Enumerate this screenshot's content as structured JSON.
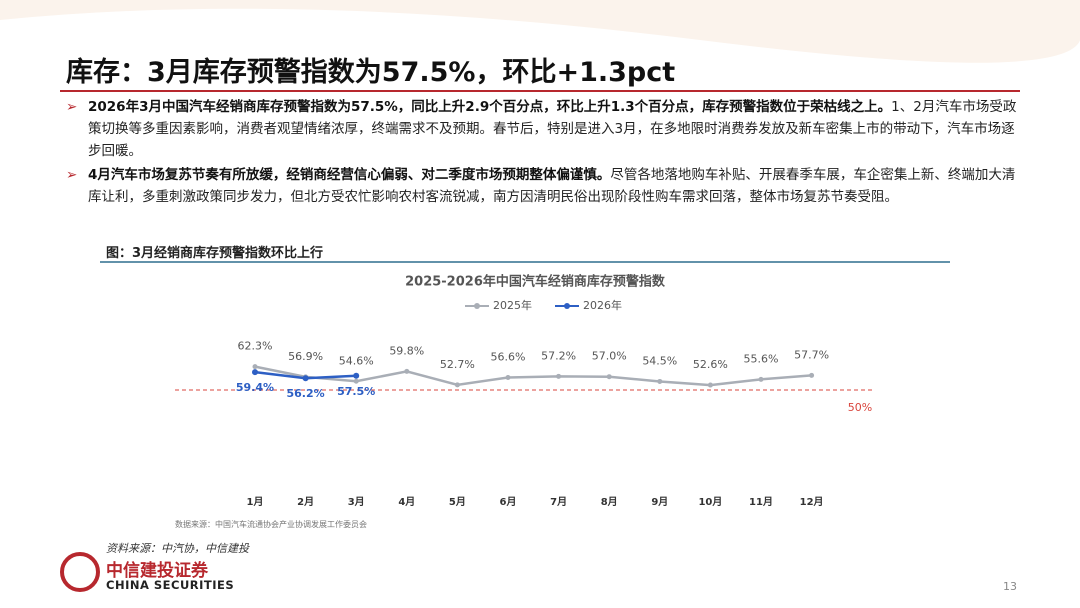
{
  "title": "库存：3月库存预警指数为57.5%，环比+1.3pct",
  "bullets": [
    {
      "bold": "2026年3月中国汽车经销商库存预警指数为57.5%，同比上升2.9个百分点，环比上升1.3个百分点，库存预警指数位于荣枯线之上。",
      "text": "1、2月汽车市场受政策切换等多重因素影响，消费者观望情绪浓厚，终端需求不及预期。春节后，特别是进入3月，在多地限时消费券发放及新车密集上市的带动下，汽车市场逐步回暖。"
    },
    {
      "bold": "4月汽车市场复苏节奏有所放缓，经销商经营信心偏弱、对二季度市场预期整体偏谨慎。",
      "text": "尽管各地落地购车补贴、开展春季车展，车企密集上新、终端加大清库让利，多重刺激政策同步发力，但北方受农忙影响农村客流锐减，南方因清明民俗出现阶段性购车需求回落，整体市场复苏节奏受阻。"
    }
  ],
  "figure_caption": "图：3月经销商库存预警指数环比上行",
  "data_source": "数据来源：中国汽车流通协会产业协调发展工作委员会",
  "source": "资料来源：中汽协，中信建投",
  "logo": {
    "name": "中信建投证券",
    "english": "CHINA SECURITIES"
  },
  "page_number": "13",
  "chart_data": {
    "type": "line",
    "title": "2025-2026年中国汽车经销商库存预警指数",
    "categories": [
      "1月",
      "2月",
      "3月",
      "4月",
      "5月",
      "6月",
      "7月",
      "8月",
      "9月",
      "10月",
      "11月",
      "12月"
    ],
    "series": [
      {
        "name": "2025年",
        "color": "#a9aeb6",
        "values": [
          62.3,
          56.9,
          54.6,
          59.8,
          52.7,
          56.6,
          57.2,
          57.0,
          54.5,
          52.6,
          55.6,
          57.7
        ],
        "value_labels": [
          "62.3%",
          "56.9%",
          "54.6%",
          "59.8%",
          "52.7%",
          "56.6%",
          "57.2%",
          "57.0%",
          "54.5%",
          "52.6%",
          "55.6%",
          "57.7%"
        ]
      },
      {
        "name": "2026年",
        "color": "#2d5fc4",
        "values": [
          59.4,
          56.2,
          57.5,
          null,
          null,
          null,
          null,
          null,
          null,
          null,
          null,
          null
        ],
        "value_labels": [
          "59.4%",
          "56.2%",
          "57.5%",
          null,
          null,
          null,
          null,
          null,
          null,
          null,
          null,
          null
        ]
      }
    ],
    "ylim": [
      0,
      100
    ],
    "threshold": {
      "value": 50,
      "label": "50%",
      "color": "#d9443c"
    }
  }
}
